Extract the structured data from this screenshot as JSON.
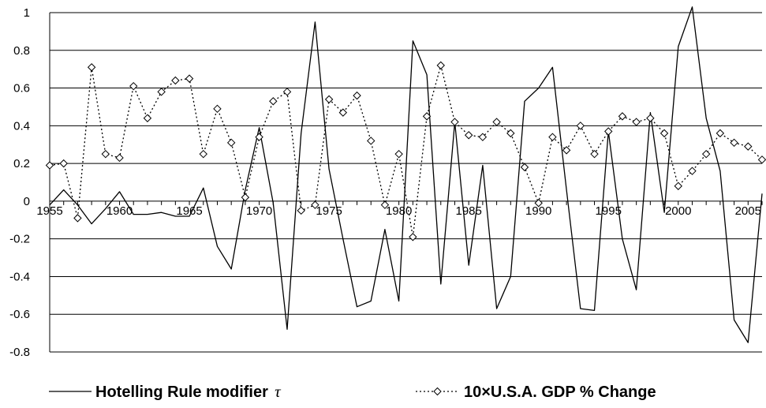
{
  "chart_data": {
    "type": "line",
    "title": "",
    "xlabel": "",
    "ylabel": "",
    "xlim": [
      1955,
      2006
    ],
    "ylim": [
      -0.8,
      1
    ],
    "y_ticks": [
      "1",
      "0.8",
      "0.6",
      "0.4",
      "0.2",
      "0",
      "-0.2",
      "-0.4",
      "-0.6",
      "-0.8"
    ],
    "x_ticks": [
      "1955",
      "1960",
      "1965",
      "1970",
      "1975",
      "1980",
      "1985",
      "1990",
      "1995",
      "2000",
      "2005"
    ],
    "grid": "horizontal",
    "legend_position": "bottom",
    "series": [
      {
        "name": "Hotelling Rule modifier",
        "name_symbol": "τ",
        "style": "solid",
        "markers": false,
        "color": "#000000",
        "x": [
          1955,
          1956,
          1957,
          1958,
          1959,
          1960,
          1961,
          1962,
          1963,
          1964,
          1965,
          1966,
          1967,
          1968,
          1969,
          1970,
          1971,
          1972,
          1973,
          1974,
          1975,
          1976,
          1977,
          1978,
          1979,
          1980,
          1981,
          1982,
          1983,
          1984,
          1985,
          1986,
          1987,
          1988,
          1989,
          1990,
          1991,
          1992,
          1993,
          1994,
          1995,
          1996,
          1997,
          1998,
          1999,
          2000,
          2001,
          2002,
          2003,
          2004,
          2005,
          2006
        ],
        "y": [
          -0.02,
          0.06,
          -0.02,
          -0.12,
          -0.04,
          0.05,
          -0.07,
          -0.07,
          -0.06,
          -0.08,
          -0.08,
          0.07,
          -0.24,
          -0.36,
          0.06,
          0.39,
          -0.01,
          -0.68,
          0.36,
          0.95,
          0.17,
          -0.2,
          -0.56,
          -0.53,
          -0.15,
          -0.53,
          0.85,
          0.67,
          -0.44,
          0.42,
          -0.34,
          0.19,
          -0.57,
          -0.4,
          0.53,
          0.6,
          0.71,
          0.06,
          -0.57,
          -0.58,
          0.37,
          -0.2,
          -0.47,
          0.47,
          -0.06,
          0.82,
          1.03,
          0.44,
          0.16,
          -0.63,
          -0.75,
          0.04
        ]
      },
      {
        "name": "10×U.S.A. GDP % Change",
        "style": "dotted",
        "markers": true,
        "marker": "diamond",
        "color": "#000000",
        "x": [
          1955,
          1956,
          1957,
          1958,
          1959,
          1960,
          1961,
          1962,
          1963,
          1964,
          1965,
          1966,
          1967,
          1968,
          1969,
          1970,
          1971,
          1972,
          1973,
          1974,
          1975,
          1976,
          1977,
          1978,
          1979,
          1980,
          1981,
          1982,
          1983,
          1984,
          1985,
          1986,
          1987,
          1988,
          1989,
          1990,
          1991,
          1992,
          1993,
          1994,
          1995,
          1996,
          1997,
          1998,
          1999,
          2000,
          2001,
          2002,
          2003,
          2004,
          2005,
          2006
        ],
        "y": [
          0.19,
          0.2,
          -0.09,
          0.71,
          0.25,
          0.23,
          0.61,
          0.44,
          0.58,
          0.64,
          0.65,
          0.25,
          0.49,
          0.31,
          0.02,
          0.34,
          0.53,
          0.58,
          -0.05,
          -0.02,
          0.54,
          0.47,
          0.56,
          0.32,
          -0.02,
          0.25,
          -0.19,
          0.45,
          0.72,
          0.42,
          0.35,
          0.34,
          0.42,
          0.36,
          0.18,
          -0.01,
          0.34,
          0.27,
          0.4,
          0.25,
          0.37,
          0.45,
          0.42,
          0.44,
          0.36,
          0.08,
          0.16,
          0.25,
          0.36,
          0.31,
          0.29,
          0.22
        ]
      }
    ]
  }
}
